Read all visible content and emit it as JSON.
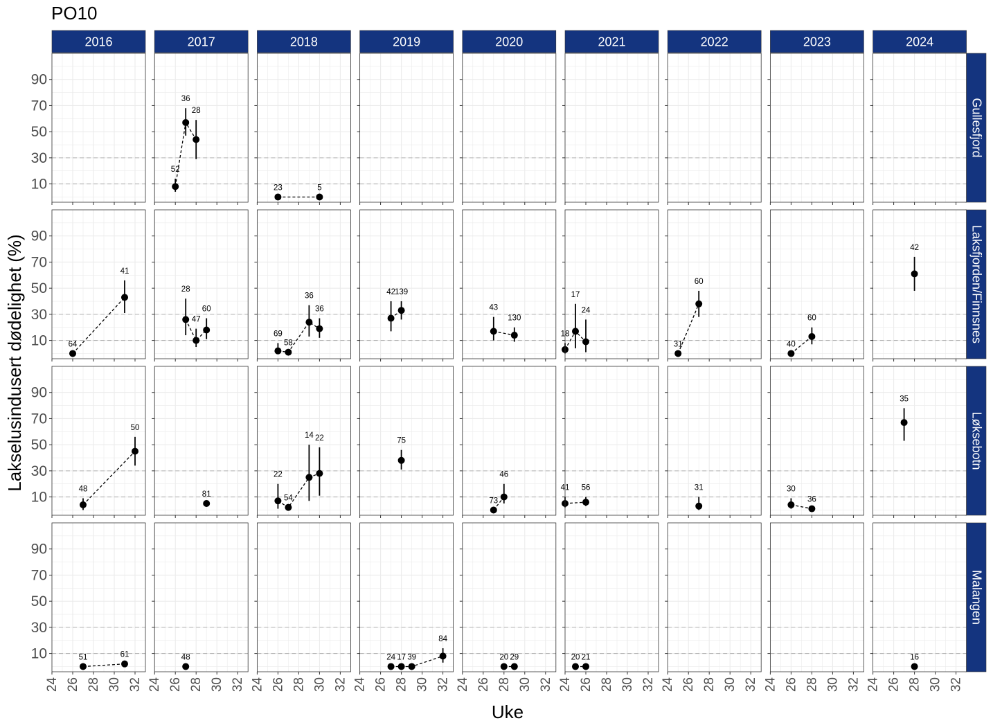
{
  "chart_data": {
    "type": "scatter",
    "title": "PO10",
    "xlabel": "Uke",
    "ylabel": "Lakselusindusert dødelighet (%)",
    "xlim": [
      24,
      33
    ],
    "ylim": [
      -4,
      110
    ],
    "x_ticks": [
      24,
      26,
      28,
      30,
      32
    ],
    "y_ticks": [
      10,
      30,
      50,
      70,
      90
    ],
    "reference_lines_y": [
      10,
      30
    ],
    "grid": true,
    "colors": {
      "strip_fill": "#14347F",
      "strip_text": "#FFFFFF",
      "points": "#000000",
      "reference_lines": "#B3B3B3",
      "grid": "#EBEBEB",
      "panel_border": "#333333"
    },
    "years": [
      "2016",
      "2017",
      "2018",
      "2019",
      "2020",
      "2021",
      "2022",
      "2023",
      "2024"
    ],
    "sites": [
      "Gullesfjord",
      "Laksfjorden/Finnsnes",
      "Løksebotn",
      "Malangen"
    ],
    "panels": [
      {
        "site": "Gullesfjord",
        "year": "2017",
        "points": [
          {
            "x": 26,
            "y": 8,
            "lo": 4,
            "hi": 14,
            "label": "52"
          },
          {
            "x": 27,
            "y": 57,
            "lo": 47,
            "hi": 68,
            "label": "36"
          },
          {
            "x": 28,
            "y": 44,
            "lo": 29,
            "hi": 59,
            "label": "28"
          }
        ]
      },
      {
        "site": "Gullesfjord",
        "year": "2018",
        "points": [
          {
            "x": 26,
            "y": 0,
            "label": "23"
          },
          {
            "x": 30,
            "y": 0,
            "label": "5"
          }
        ]
      },
      {
        "site": "Laksfjorden/Finnsnes",
        "year": "2016",
        "points": [
          {
            "x": 26,
            "y": 0,
            "label": "64"
          },
          {
            "x": 31,
            "y": 43,
            "lo": 31,
            "hi": 56,
            "label": "41"
          }
        ]
      },
      {
        "site": "Laksfjorden/Finnsnes",
        "year": "2017",
        "points": [
          {
            "x": 27,
            "y": 26,
            "lo": 14,
            "hi": 42,
            "label": "28"
          },
          {
            "x": 28,
            "y": 10,
            "lo": 5,
            "hi": 19,
            "label": "47"
          },
          {
            "x": 29,
            "y": 18,
            "lo": 11,
            "hi": 27,
            "label": "60"
          }
        ]
      },
      {
        "site": "Laksfjorden/Finnsnes",
        "year": "2018",
        "points": [
          {
            "x": 26,
            "y": 2,
            "lo": 0,
            "hi": 8,
            "label": "69"
          },
          {
            "x": 27,
            "y": 1,
            "label": "58"
          },
          {
            "x": 29,
            "y": 24,
            "lo": 13,
            "hi": 37,
            "label": "36"
          },
          {
            "x": 30,
            "y": 19,
            "lo": 12,
            "hi": 27,
            "label": "36"
          }
        ]
      },
      {
        "site": "Laksfjorden/Finnsnes",
        "year": "2019",
        "points": [
          {
            "x": 27,
            "y": 27,
            "lo": 17,
            "hi": 40,
            "label": "42"
          },
          {
            "x": 28,
            "y": 33,
            "lo": 26,
            "hi": 40,
            "label": "139"
          }
        ]
      },
      {
        "site": "Laksfjorden/Finnsnes",
        "year": "2020",
        "points": [
          {
            "x": 27,
            "y": 17,
            "lo": 10,
            "hi": 28,
            "label": "43"
          },
          {
            "x": 29,
            "y": 14,
            "lo": 9,
            "hi": 20,
            "label": "130"
          }
        ]
      },
      {
        "site": "Laksfjorden/Finnsnes",
        "year": "2021",
        "points": [
          {
            "x": 24,
            "y": 3,
            "lo": 0,
            "hi": 8,
            "label": "18"
          },
          {
            "x": 25,
            "y": 17,
            "lo": 4,
            "hi": 38,
            "label": "17"
          },
          {
            "x": 26,
            "y": 9,
            "lo": 1,
            "hi": 26,
            "label": "24"
          }
        ]
      },
      {
        "site": "Laksfjorden/Finnsnes",
        "year": "2022",
        "points": [
          {
            "x": 25,
            "y": 0,
            "label": "31"
          },
          {
            "x": 27,
            "y": 38,
            "lo": 28,
            "hi": 48,
            "label": "60"
          }
        ]
      },
      {
        "site": "Laksfjorden/Finnsnes",
        "year": "2023",
        "points": [
          {
            "x": 26,
            "y": 0,
            "label": "40"
          },
          {
            "x": 28,
            "y": 13,
            "lo": 7,
            "hi": 20,
            "label": "60"
          }
        ]
      },
      {
        "site": "Laksfjorden/Finnsnes",
        "year": "2024",
        "points": [
          {
            "x": 28,
            "y": 61,
            "lo": 48,
            "hi": 74,
            "label": "42"
          }
        ]
      },
      {
        "site": "Løksebotn",
        "year": "2016",
        "points": [
          {
            "x": 27,
            "y": 4,
            "lo": 0,
            "hi": 9,
            "label": "48"
          },
          {
            "x": 32,
            "y": 45,
            "lo": 34,
            "hi": 56,
            "label": "50"
          }
        ]
      },
      {
        "site": "Løksebotn",
        "year": "2017",
        "points": [
          {
            "x": 29,
            "y": 5,
            "label": "81"
          }
        ]
      },
      {
        "site": "Løksebotn",
        "year": "2018",
        "points": [
          {
            "x": 26,
            "y": 7,
            "lo": 1,
            "hi": 20,
            "label": "22"
          },
          {
            "x": 27,
            "y": 2,
            "label": "54"
          },
          {
            "x": 29,
            "y": 25,
            "lo": 7,
            "hi": 50,
            "label": "14"
          },
          {
            "x": 30,
            "y": 28,
            "lo": 11,
            "hi": 48,
            "label": "22"
          }
        ]
      },
      {
        "site": "Løksebotn",
        "year": "2019",
        "points": [
          {
            "x": 28,
            "y": 38,
            "lo": 31,
            "hi": 46,
            "label": "75"
          }
        ]
      },
      {
        "site": "Løksebotn",
        "year": "2020",
        "points": [
          {
            "x": 27,
            "y": 0,
            "label": "73"
          },
          {
            "x": 28,
            "y": 10,
            "lo": 5,
            "hi": 20,
            "label": "46"
          }
        ]
      },
      {
        "site": "Løksebotn",
        "year": "2021",
        "points": [
          {
            "x": 24,
            "y": 5,
            "lo": 2,
            "hi": 10,
            "label": "41"
          },
          {
            "x": 26,
            "y": 6,
            "lo": 3,
            "hi": 10,
            "label": "56"
          }
        ]
      },
      {
        "site": "Løksebotn",
        "year": "2022",
        "points": [
          {
            "x": 27,
            "y": 3,
            "lo": 0,
            "hi": 10,
            "label": "31"
          }
        ]
      },
      {
        "site": "Løksebotn",
        "year": "2023",
        "points": [
          {
            "x": 26,
            "y": 4,
            "lo": 1,
            "hi": 9,
            "label": "30"
          },
          {
            "x": 28,
            "y": 1,
            "label": "36"
          }
        ]
      },
      {
        "site": "Løksebotn",
        "year": "2024",
        "points": [
          {
            "x": 27,
            "y": 67,
            "lo": 53,
            "hi": 78,
            "label": "35"
          }
        ]
      },
      {
        "site": "Malangen",
        "year": "2016",
        "points": [
          {
            "x": 27,
            "y": 0,
            "label": "51"
          },
          {
            "x": 31,
            "y": 2,
            "label": "61"
          }
        ]
      },
      {
        "site": "Malangen",
        "year": "2017",
        "points": [
          {
            "x": 27,
            "y": 0,
            "label": "48"
          }
        ]
      },
      {
        "site": "Malangen",
        "year": "2019",
        "points": [
          {
            "x": 27,
            "y": 0,
            "label": "24"
          },
          {
            "x": 28,
            "y": 0,
            "label": "17"
          },
          {
            "x": 29,
            "y": 0,
            "label": "39"
          },
          {
            "x": 32,
            "y": 8,
            "lo": 3,
            "hi": 14,
            "label": "84"
          }
        ]
      },
      {
        "site": "Malangen",
        "year": "2020",
        "points": [
          {
            "x": 28,
            "y": 0,
            "label": "20"
          },
          {
            "x": 29,
            "y": 0,
            "label": "29"
          }
        ]
      },
      {
        "site": "Malangen",
        "year": "2021",
        "points": [
          {
            "x": 25,
            "y": 0,
            "label": "20"
          },
          {
            "x": 26,
            "y": 0,
            "label": "21"
          }
        ]
      },
      {
        "site": "Malangen",
        "year": "2024",
        "points": [
          {
            "x": 28,
            "y": 0,
            "label": "16"
          }
        ]
      }
    ]
  }
}
